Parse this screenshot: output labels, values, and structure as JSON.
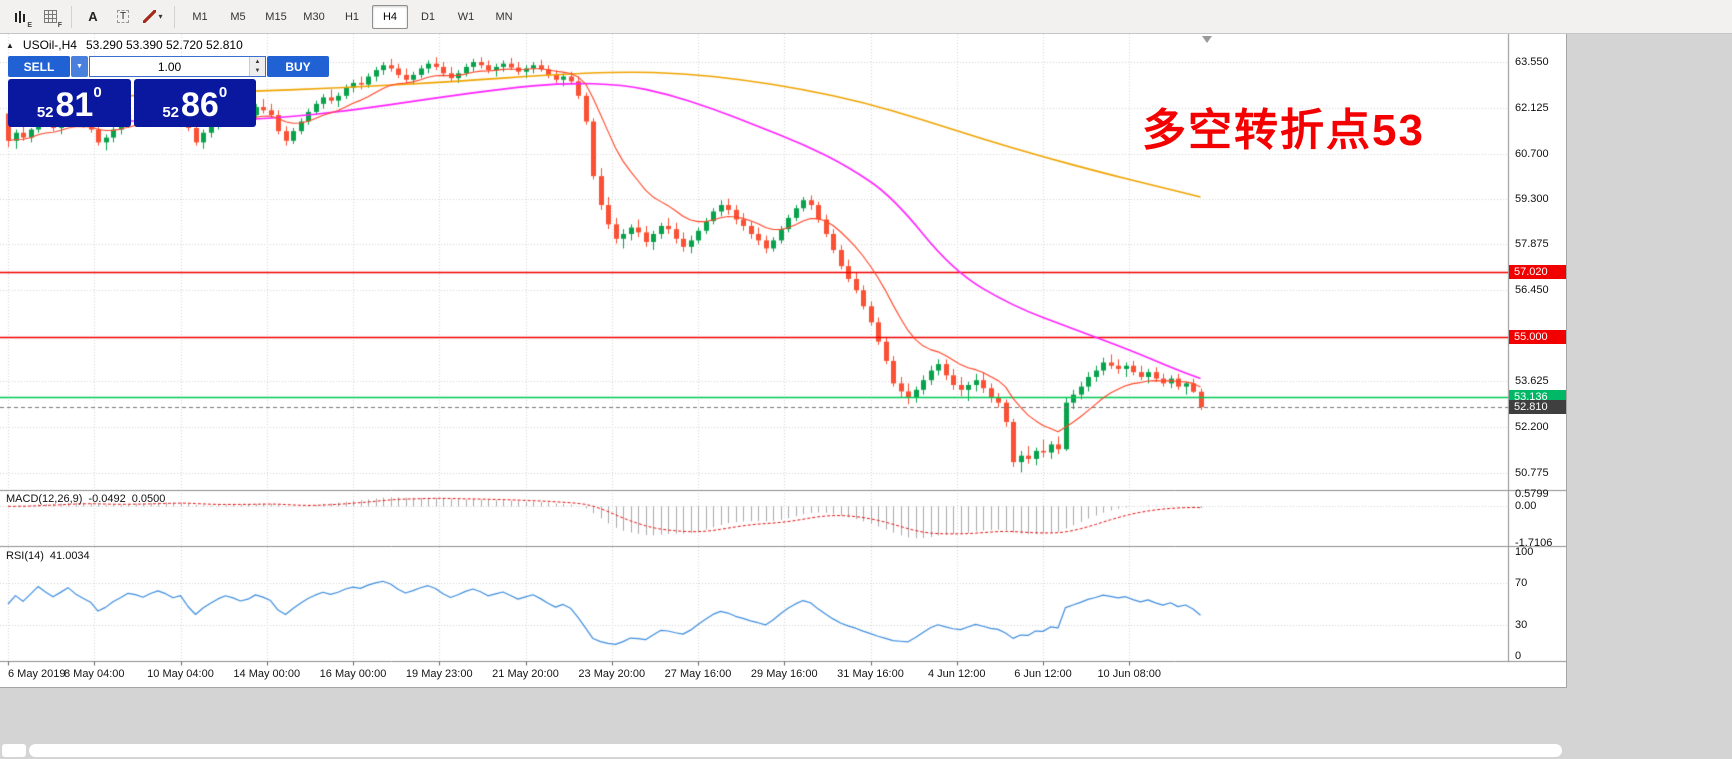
{
  "toolbar": {
    "icons": [
      {
        "name": "candlestick-tool-icon",
        "badge": "E"
      },
      {
        "name": "grid-tool-icon",
        "badge": "F"
      },
      {
        "name": "text-tool-icon",
        "glyph": "A"
      },
      {
        "name": "textbox-tool-icon",
        "glyph": "T"
      },
      {
        "name": "drawing-tool-icon",
        "dropdown": true
      }
    ],
    "timeframes": [
      "M1",
      "M5",
      "M15",
      "M30",
      "H1",
      "H4",
      "D1",
      "W1",
      "MN"
    ],
    "active_timeframe": "H4"
  },
  "chart": {
    "header": {
      "symbol": "USOil-,H4",
      "ohlc": "53.290 53.390 52.720 52.810"
    }
  },
  "one_click": {
    "sell_label": "SELL",
    "buy_label": "BUY",
    "volume": "1.00",
    "sell_price": {
      "big": "52",
      "pips": "81",
      "sup": "0"
    },
    "buy_price": {
      "big": "52",
      "pips": "86",
      "sup": "0"
    }
  },
  "annotation": {
    "text": "多空转折点53",
    "color": "#f40000"
  },
  "price_scale": {
    "ticks": [
      63.55,
      62.125,
      60.7,
      59.3,
      57.875,
      56.45,
      55.0,
      53.625,
      52.2,
      50.775
    ],
    "levels": [
      {
        "text": "57.020",
        "price": 57.02,
        "bg": "#f20000",
        "fg": "#ffffff"
      },
      {
        "text": "55.000",
        "price": 55.0,
        "bg": "#f20000",
        "fg": "#ffffff"
      },
      {
        "text": "53.136",
        "price": 53.136,
        "bg": "#00b865",
        "fg": "#ffffff"
      },
      {
        "text": "52.810",
        "price": 52.81,
        "bg": "#3f3f3f",
        "fg": "#ffffff"
      }
    ]
  },
  "indicators": {
    "macd": {
      "label": "MACD(12,26,9)",
      "value": "-0.0492",
      "signal_value": "0.0500",
      "scale_top": "0.5799",
      "scale_zero": "0.00",
      "scale_bottom": "-1.7106",
      "fast": 12,
      "slow": 26,
      "signal": 9
    },
    "rsi": {
      "label": "RSI(14)",
      "value": "41.0034",
      "period": 14,
      "scale": [
        "100",
        "70",
        "30",
        "0"
      ],
      "levels": [
        70,
        30
      ]
    }
  },
  "time_axis": {
    "labels": [
      "6 May 2019",
      "8 May 04:00",
      "10 May 04:00",
      "14 May 00:00",
      "16 May 00:00",
      "19 May 23:00",
      "21 May 20:00",
      "23 May 20:00",
      "27 May 16:00",
      "29 May 16:00",
      "31 May 16:00",
      "4 Jun 12:00",
      "6 Jun 12:00",
      "10 Jun 08:00"
    ],
    "candles_per_tick": 11.5
  },
  "chart_data": {
    "type": "candlestick",
    "symbol": "USOil-",
    "timeframe": "H4",
    "ylim": [
      50.45,
      64.05
    ],
    "current_price": 52.81,
    "hlines": [
      {
        "price": 57.02,
        "color": "#f20000"
      },
      {
        "price": 55.0,
        "color": "#f20000"
      },
      {
        "price": 53.136,
        "color": "#00cc55"
      }
    ],
    "ma_fast": {
      "period": 12,
      "color": "#ff4628"
    },
    "ma_medium": {
      "color": "#ff22ff",
      "points": [
        [
          0,
          61.95
        ],
        [
          12,
          61.72
        ],
        [
          24,
          61.7
        ],
        [
          36,
          61.8
        ],
        [
          46,
          62.05
        ],
        [
          56,
          62.4
        ],
        [
          66,
          62.72
        ],
        [
          74,
          62.9
        ],
        [
          82,
          62.85
        ],
        [
          88,
          62.55
        ],
        [
          94,
          62.1
        ],
        [
          100,
          61.55
        ],
        [
          106,
          61.0
        ],
        [
          112,
          60.3
        ],
        [
          118,
          59.35
        ],
        [
          126,
          57.05
        ],
        [
          134,
          55.95
        ],
        [
          142,
          55.25
        ],
        [
          150,
          54.55
        ],
        [
          155,
          54.05
        ],
        [
          159,
          53.7
        ]
      ]
    },
    "ma_slow": {
      "color": "#f0a400",
      "points": [
        [
          0,
          62.35
        ],
        [
          15,
          62.5
        ],
        [
          30,
          62.62
        ],
        [
          45,
          62.75
        ],
        [
          60,
          62.95
        ],
        [
          72,
          63.15
        ],
        [
          82,
          63.25
        ],
        [
          90,
          63.2
        ],
        [
          98,
          63.0
        ],
        [
          106,
          62.7
        ],
        [
          114,
          62.3
        ],
        [
          122,
          61.75
        ],
        [
          130,
          61.15
        ],
        [
          138,
          60.6
        ],
        [
          146,
          60.1
        ],
        [
          152,
          59.75
        ],
        [
          159,
          59.35
        ]
      ]
    },
    "colors": {
      "bull": "#09a24c",
      "bear": "#fa5134",
      "grid": "#d6d6d6",
      "macd_hist": "#a9a9a9",
      "macd_signal": "#e51717",
      "rsi_line": "#3f8ede"
    },
    "ohlc": [
      [
        61.95,
        62.05,
        60.9,
        61.1
      ],
      [
        61.1,
        61.45,
        60.85,
        61.35
      ],
      [
        61.35,
        61.6,
        61.1,
        61.2
      ],
      [
        61.2,
        61.5,
        61.05,
        61.45
      ],
      [
        61.45,
        61.9,
        61.35,
        61.8
      ],
      [
        61.8,
        62.0,
        61.55,
        61.65
      ],
      [
        61.65,
        61.85,
        61.4,
        61.5
      ],
      [
        61.5,
        61.75,
        61.3,
        61.7
      ],
      [
        61.7,
        62.05,
        61.6,
        61.95
      ],
      [
        61.95,
        62.1,
        61.65,
        61.75
      ],
      [
        61.75,
        61.95,
        61.5,
        61.6
      ],
      [
        61.6,
        61.8,
        61.35,
        61.45
      ],
      [
        61.45,
        61.55,
        60.95,
        61.05
      ],
      [
        61.05,
        61.3,
        60.8,
        61.2
      ],
      [
        61.2,
        61.55,
        61.05,
        61.45
      ],
      [
        61.45,
        61.75,
        61.3,
        61.65
      ],
      [
        61.65,
        62.0,
        61.5,
        61.9
      ],
      [
        61.9,
        62.15,
        61.7,
        61.85
      ],
      [
        61.85,
        62.1,
        61.6,
        61.75
      ],
      [
        61.75,
        62.0,
        61.55,
        61.95
      ],
      [
        61.95,
        62.25,
        61.8,
        62.1
      ],
      [
        62.1,
        62.35,
        61.9,
        62.0
      ],
      [
        62.0,
        62.2,
        61.75,
        61.85
      ],
      [
        61.85,
        62.05,
        61.6,
        61.95
      ],
      [
        61.95,
        62.1,
        61.4,
        61.5
      ],
      [
        61.5,
        61.65,
        60.95,
        61.05
      ],
      [
        61.05,
        61.45,
        60.85,
        61.35
      ],
      [
        61.35,
        61.7,
        61.2,
        61.6
      ],
      [
        61.6,
        61.95,
        61.45,
        61.85
      ],
      [
        61.85,
        62.2,
        61.7,
        62.05
      ],
      [
        62.05,
        62.3,
        61.85,
        61.95
      ],
      [
        61.95,
        62.15,
        61.7,
        61.8
      ],
      [
        61.8,
        62.0,
        61.55,
        61.9
      ],
      [
        61.9,
        62.25,
        61.75,
        62.15
      ],
      [
        62.15,
        62.4,
        61.95,
        62.05
      ],
      [
        62.05,
        62.25,
        61.8,
        61.9
      ],
      [
        61.9,
        62.05,
        61.3,
        61.4
      ],
      [
        61.4,
        61.55,
        60.95,
        61.1
      ],
      [
        61.1,
        61.5,
        61.0,
        61.4
      ],
      [
        61.4,
        61.8,
        61.3,
        61.7
      ],
      [
        61.7,
        62.1,
        61.6,
        62.0
      ],
      [
        62.0,
        62.35,
        61.9,
        62.25
      ],
      [
        62.25,
        62.55,
        62.1,
        62.45
      ],
      [
        62.45,
        62.7,
        62.25,
        62.35
      ],
      [
        62.35,
        62.6,
        62.15,
        62.5
      ],
      [
        62.5,
        62.85,
        62.4,
        62.75
      ],
      [
        62.75,
        63.0,
        62.6,
        62.9
      ],
      [
        62.9,
        63.1,
        62.7,
        62.85
      ],
      [
        62.85,
        63.2,
        62.75,
        63.1
      ],
      [
        63.1,
        63.4,
        62.95,
        63.3
      ],
      [
        63.3,
        63.55,
        63.15,
        63.45
      ],
      [
        63.45,
        63.65,
        63.25,
        63.35
      ],
      [
        63.35,
        63.5,
        63.05,
        63.15
      ],
      [
        63.15,
        63.35,
        62.9,
        63.0
      ],
      [
        63.0,
        63.25,
        62.85,
        63.15
      ],
      [
        63.15,
        63.45,
        63.05,
        63.35
      ],
      [
        63.35,
        63.6,
        63.2,
        63.5
      ],
      [
        63.5,
        63.7,
        63.3,
        63.4
      ],
      [
        63.4,
        63.55,
        63.1,
        63.2
      ],
      [
        63.2,
        63.4,
        62.95,
        63.05
      ],
      [
        63.05,
        63.3,
        62.9,
        63.2
      ],
      [
        63.2,
        63.5,
        63.1,
        63.4
      ],
      [
        63.4,
        63.65,
        63.25,
        63.55
      ],
      [
        63.55,
        63.7,
        63.35,
        63.45
      ],
      [
        63.45,
        63.6,
        63.2,
        63.3
      ],
      [
        63.3,
        63.5,
        63.1,
        63.4
      ],
      [
        63.4,
        63.6,
        63.25,
        63.5
      ],
      [
        63.5,
        63.68,
        63.3,
        63.38
      ],
      [
        63.38,
        63.55,
        63.15,
        63.25
      ],
      [
        63.25,
        63.45,
        63.05,
        63.35
      ],
      [
        63.35,
        63.55,
        63.2,
        63.45
      ],
      [
        63.45,
        63.62,
        63.25,
        63.32
      ],
      [
        63.32,
        63.45,
        63.05,
        63.15
      ],
      [
        63.15,
        63.3,
        62.9,
        63.0
      ],
      [
        63.0,
        63.2,
        62.8,
        63.1
      ],
      [
        63.1,
        63.25,
        62.85,
        62.95
      ],
      [
        62.95,
        63.1,
        62.4,
        62.5
      ],
      [
        62.5,
        62.6,
        61.6,
        61.7
      ],
      [
        61.7,
        61.8,
        59.9,
        60.0
      ],
      [
        60.0,
        60.25,
        58.95,
        59.1
      ],
      [
        59.1,
        59.35,
        58.35,
        58.5
      ],
      [
        58.5,
        58.7,
        57.9,
        58.05
      ],
      [
        58.05,
        58.35,
        57.75,
        58.2
      ],
      [
        58.2,
        58.5,
        58.0,
        58.4
      ],
      [
        58.4,
        58.65,
        58.1,
        58.25
      ],
      [
        58.25,
        58.45,
        57.8,
        57.95
      ],
      [
        57.95,
        58.3,
        57.7,
        58.2
      ],
      [
        58.2,
        58.55,
        58.05,
        58.45
      ],
      [
        58.45,
        58.7,
        58.2,
        58.35
      ],
      [
        58.35,
        58.55,
        57.9,
        58.05
      ],
      [
        58.05,
        58.25,
        57.65,
        57.8
      ],
      [
        57.8,
        58.15,
        57.6,
        58.0
      ],
      [
        58.0,
        58.4,
        57.9,
        58.3
      ],
      [
        58.3,
        58.7,
        58.2,
        58.6
      ],
      [
        58.6,
        59.0,
        58.5,
        58.9
      ],
      [
        58.9,
        59.25,
        58.75,
        59.1
      ],
      [
        59.1,
        59.3,
        58.8,
        58.95
      ],
      [
        58.95,
        59.1,
        58.5,
        58.65
      ],
      [
        58.65,
        58.85,
        58.3,
        58.45
      ],
      [
        58.45,
        58.6,
        58.05,
        58.2
      ],
      [
        58.2,
        58.4,
        57.85,
        58.0
      ],
      [
        58.0,
        58.15,
        57.6,
        57.75
      ],
      [
        57.75,
        58.1,
        57.65,
        58.0
      ],
      [
        58.0,
        58.45,
        57.9,
        58.35
      ],
      [
        58.35,
        58.8,
        58.25,
        58.7
      ],
      [
        58.7,
        59.1,
        58.6,
        59.0
      ],
      [
        59.0,
        59.35,
        58.9,
        59.25
      ],
      [
        59.25,
        59.4,
        58.95,
        59.1
      ],
      [
        59.1,
        59.2,
        58.55,
        58.65
      ],
      [
        58.65,
        58.8,
        58.1,
        58.2
      ],
      [
        58.2,
        58.35,
        57.6,
        57.7
      ],
      [
        57.7,
        57.85,
        57.1,
        57.2
      ],
      [
        57.2,
        57.4,
        56.7,
        56.8
      ],
      [
        56.8,
        57.0,
        56.35,
        56.45
      ],
      [
        56.45,
        56.6,
        55.85,
        55.95
      ],
      [
        55.95,
        56.1,
        55.35,
        55.45
      ],
      [
        55.45,
        55.6,
        54.75,
        54.85
      ],
      [
        54.85,
        55.0,
        54.15,
        54.25
      ],
      [
        54.25,
        54.4,
        53.45,
        53.55
      ],
      [
        53.55,
        53.75,
        53.1,
        53.3
      ],
      [
        53.3,
        53.55,
        52.9,
        53.1
      ],
      [
        53.1,
        53.45,
        52.95,
        53.35
      ],
      [
        53.35,
        53.8,
        53.2,
        53.65
      ],
      [
        53.65,
        54.1,
        53.5,
        53.95
      ],
      [
        53.95,
        54.3,
        53.8,
        54.15
      ],
      [
        54.15,
        54.3,
        53.65,
        53.8
      ],
      [
        53.8,
        54.0,
        53.35,
        53.5
      ],
      [
        53.5,
        53.75,
        53.15,
        53.35
      ],
      [
        53.35,
        53.6,
        53.0,
        53.5
      ],
      [
        53.5,
        53.85,
        53.3,
        53.65
      ],
      [
        53.65,
        53.9,
        53.25,
        53.4
      ],
      [
        53.4,
        53.55,
        52.95,
        53.1
      ],
      [
        53.1,
        53.25,
        52.8,
        52.95
      ],
      [
        52.95,
        53.05,
        52.2,
        52.35
      ],
      [
        52.35,
        52.45,
        50.95,
        51.1
      ],
      [
        51.1,
        51.45,
        50.78,
        51.3
      ],
      [
        51.3,
        51.6,
        51.05,
        51.2
      ],
      [
        51.2,
        51.55,
        51.0,
        51.45
      ],
      [
        51.45,
        51.8,
        51.25,
        51.4
      ],
      [
        51.4,
        51.75,
        51.2,
        51.65
      ],
      [
        51.65,
        51.9,
        51.35,
        51.5
      ],
      [
        51.5,
        53.1,
        51.45,
        52.95
      ],
      [
        52.95,
        53.35,
        52.75,
        53.2
      ],
      [
        53.2,
        53.6,
        53.05,
        53.45
      ],
      [
        53.45,
        53.9,
        53.3,
        53.75
      ],
      [
        53.75,
        54.1,
        53.6,
        53.95
      ],
      [
        53.95,
        54.35,
        53.8,
        54.2
      ],
      [
        54.2,
        54.45,
        54.0,
        54.1
      ],
      [
        54.1,
        54.3,
        53.85,
        54.0
      ],
      [
        54.0,
        54.2,
        53.75,
        54.1
      ],
      [
        54.1,
        54.25,
        53.8,
        53.9
      ],
      [
        53.9,
        54.1,
        53.65,
        53.75
      ],
      [
        53.75,
        54.0,
        53.55,
        53.9
      ],
      [
        53.9,
        54.05,
        53.6,
        53.7
      ],
      [
        53.7,
        53.85,
        53.45,
        53.55
      ],
      [
        53.55,
        53.8,
        53.4,
        53.7
      ],
      [
        53.7,
        53.85,
        53.35,
        53.45
      ],
      [
        53.45,
        53.6,
        53.2,
        53.55
      ],
      [
        53.55,
        53.7,
        53.25,
        53.29
      ],
      [
        53.29,
        53.39,
        52.72,
        52.81
      ]
    ]
  }
}
